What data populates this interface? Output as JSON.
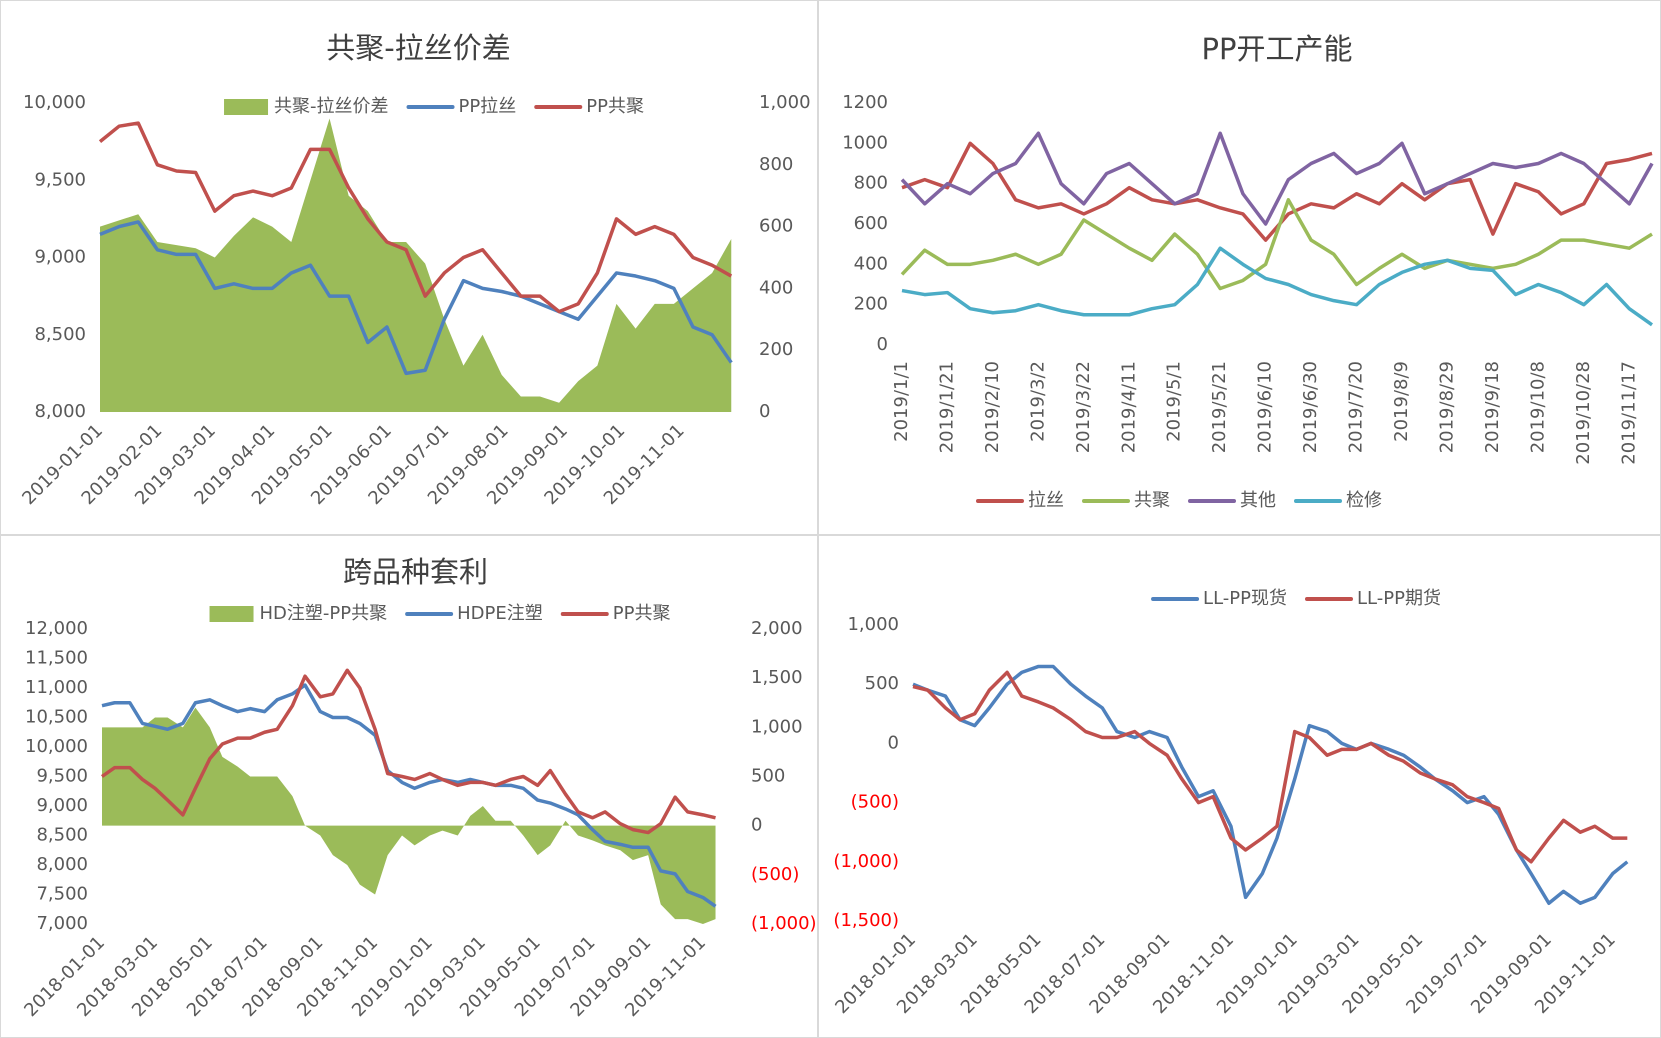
{
  "chart_data": [
    {
      "type": "combo",
      "title": "共聚-拉丝价差",
      "legend": "top",
      "x": [
        "2019-01-01",
        "2019-01-11",
        "2019-01-21",
        "2019-01-31",
        "2019-02-10",
        "2019-02-20",
        "2019-03-02",
        "2019-03-12",
        "2019-03-22",
        "2019-04-01",
        "2019-04-11",
        "2019-04-21",
        "2019-05-01",
        "2019-05-11",
        "2019-05-21",
        "2019-05-31",
        "2019-06-10",
        "2019-06-20",
        "2019-06-30",
        "2019-07-10",
        "2019-07-20",
        "2019-07-30",
        "2019-08-09",
        "2019-08-19",
        "2019-08-29",
        "2019-09-08",
        "2019-09-18",
        "2019-09-28",
        "2019-10-08",
        "2019-10-18",
        "2019-10-28",
        "2019-11-07",
        "2019-11-17",
        "2019-11-27"
      ],
      "xlim": [
        "2019-01-01",
        "2019-11-30"
      ],
      "xticks": [
        "2019-01-01",
        "2019-02-01",
        "2019-03-01",
        "2019-04-01",
        "2019-05-01",
        "2019-06-01",
        "2019-07-01",
        "2019-08-01",
        "2019-09-01",
        "2019-10-01",
        "2019-11-01"
      ],
      "ylim": [
        8000,
        10000
      ],
      "yticks": [
        {
          "value": 8000,
          "label": "8,000"
        },
        {
          "value": 8500,
          "label": "8,500"
        },
        {
          "value": 9000,
          "label": "9,000"
        },
        {
          "value": 9500,
          "label": "9,500"
        },
        {
          "value": 10000,
          "label": "10,000"
        }
      ],
      "y2lim": [
        0,
        1000
      ],
      "y2ticks": [
        0,
        200,
        400,
        600,
        800,
        {
          "value": 1000,
          "label": "1,000"
        }
      ],
      "series": [
        {
          "name": "共聚-拉丝价差",
          "kind": "area",
          "axis": "y2",
          "color": "#9bbb59",
          "values": [
            600,
            620,
            640,
            550,
            540,
            530,
            500,
            570,
            630,
            600,
            550,
            750,
            950,
            700,
            650,
            550,
            550,
            480,
            300,
            150,
            250,
            120,
            50,
            50,
            30,
            100,
            150,
            350,
            270,
            350,
            350,
            400,
            450,
            560
          ]
        },
        {
          "name": "PP拉丝",
          "kind": "line",
          "color": "#4f81bd",
          "values": [
            9150,
            9200,
            9230,
            9050,
            9020,
            9020,
            8800,
            8830,
            8800,
            8800,
            8900,
            8950,
            8750,
            8750,
            8450,
            8550,
            8250,
            8270,
            8600,
            8850,
            8800,
            8780,
            8750,
            8700,
            8650,
            8600,
            8750,
            8900,
            8880,
            8850,
            8800,
            8550,
            8500,
            8320
          ]
        },
        {
          "name": "PP共聚",
          "kind": "line",
          "color": "#c0504d",
          "values": [
            9750,
            9850,
            9870,
            9600,
            9560,
            9550,
            9300,
            9400,
            9430,
            9400,
            9450,
            9700,
            9700,
            9450,
            9250,
            9100,
            9050,
            8750,
            8900,
            9000,
            9050,
            8900,
            8750,
            8750,
            8650,
            8700,
            8900,
            9250,
            9150,
            9200,
            9150,
            9000,
            8950,
            8880
          ]
        }
      ]
    },
    {
      "type": "line",
      "title": "PP开工产能",
      "legend": "bottom",
      "x": [
        "2019/1/1",
        "2019/1/11",
        "2019/1/21",
        "2019/1/31",
        "2019/2/10",
        "2019/2/20",
        "2019/3/2",
        "2019/3/12",
        "2019/3/22",
        "2019/4/1",
        "2019/4/11",
        "2019/4/21",
        "2019/5/1",
        "2019/5/11",
        "2019/5/21",
        "2019/5/31",
        "2019/6/10",
        "2019/6/20",
        "2019/6/30",
        "2019/7/10",
        "2019/7/20",
        "2019/7/30",
        "2019/8/9",
        "2019/8/19",
        "2019/8/29",
        "2019/9/8",
        "2019/9/18",
        "2019/9/28",
        "2019/10/8",
        "2019/10/18",
        "2019/10/28",
        "2019/11/7",
        "2019/11/17",
        "2019/11/27"
      ],
      "xlim": [
        "2019/1/1",
        "2019/11/27"
      ],
      "xticks": [
        "2019/1/1",
        "2019/1/21",
        "2019/2/10",
        "2019/3/2",
        "2019/3/22",
        "2019/4/11",
        "2019/5/1",
        "2019/5/21",
        "2019/6/10",
        "2019/6/30",
        "2019/7/20",
        "2019/8/9",
        "2019/8/29",
        "2019/9/18",
        "2019/10/8",
        "2019/10/28",
        "2019/11/17"
      ],
      "ylim": [
        0,
        1200
      ],
      "yticks": [
        0,
        200,
        400,
        600,
        800,
        1000,
        1200
      ],
      "series": [
        {
          "name": "拉丝",
          "kind": "line",
          "color": "#c0504d",
          "values": [
            780,
            820,
            780,
            1000,
            900,
            720,
            680,
            700,
            650,
            700,
            780,
            720,
            700,
            720,
            680,
            650,
            520,
            650,
            700,
            680,
            750,
            700,
            800,
            720,
            800,
            820,
            550,
            800,
            760,
            650,
            700,
            900,
            920,
            950
          ]
        },
        {
          "name": "共聚",
          "kind": "line",
          "color": "#9bbb59",
          "values": [
            350,
            470,
            400,
            400,
            420,
            450,
            400,
            450,
            620,
            550,
            480,
            420,
            550,
            450,
            280,
            320,
            400,
            720,
            520,
            450,
            300,
            380,
            450,
            380,
            420,
            400,
            380,
            400,
            450,
            520,
            520,
            500,
            480,
            550
          ]
        },
        {
          "name": "其他",
          "kind": "line",
          "color": "#8064a2",
          "values": [
            820,
            700,
            800,
            750,
            850,
            900,
            1050,
            800,
            700,
            850,
            900,
            800,
            700,
            750,
            1050,
            750,
            600,
            820,
            900,
            950,
            850,
            900,
            1000,
            750,
            800,
            850,
            900,
            880,
            900,
            950,
            900,
            800,
            700,
            900
          ]
        },
        {
          "name": "检修",
          "kind": "line",
          "color": "#4bacc6",
          "values": [
            270,
            250,
            260,
            180,
            160,
            170,
            200,
            170,
            150,
            150,
            150,
            180,
            200,
            300,
            480,
            400,
            330,
            300,
            250,
            220,
            200,
            300,
            360,
            400,
            420,
            380,
            370,
            250,
            300,
            260,
            200,
            300,
            180,
            100
          ]
        }
      ]
    },
    {
      "type": "combo",
      "title": "跨品种套利",
      "legend": "top",
      "negative_tick_color": "#ff0000",
      "x": [
        "2018-01-01",
        "2018-01-15",
        "2018-02-01",
        "2018-02-15",
        "2018-03-01",
        "2018-03-15",
        "2018-04-01",
        "2018-04-15",
        "2018-05-01",
        "2018-05-15",
        "2018-06-01",
        "2018-06-15",
        "2018-07-01",
        "2018-07-15",
        "2018-08-01",
        "2018-08-15",
        "2018-09-01",
        "2018-09-15",
        "2018-10-01",
        "2018-10-15",
        "2018-11-01",
        "2018-11-15",
        "2018-12-01",
        "2018-12-15",
        "2019-01-01",
        "2019-01-15",
        "2019-02-01",
        "2019-02-15",
        "2019-03-01",
        "2019-03-15",
        "2019-04-01",
        "2019-04-15",
        "2019-05-01",
        "2019-05-15",
        "2019-06-01",
        "2019-06-15",
        "2019-07-01",
        "2019-07-15",
        "2019-08-01",
        "2019-08-15",
        "2019-09-01",
        "2019-09-15",
        "2019-10-01",
        "2019-10-15",
        "2019-11-01",
        "2019-11-15"
      ],
      "xlim": [
        "2018-01-01",
        "2019-11-30"
      ],
      "xticks": [
        "2018-01-01",
        "2018-03-01",
        "2018-05-01",
        "2018-07-01",
        "2018-09-01",
        "2018-11-01",
        "2019-01-01",
        "2019-03-01",
        "2019-05-01",
        "2019-07-01",
        "2019-09-01",
        "2019-11-01"
      ],
      "ylim": [
        7000,
        12000
      ],
      "yticks": [
        {
          "value": 7000,
          "label": "7,000"
        },
        {
          "value": 7500,
          "label": "7,500"
        },
        {
          "value": 8000,
          "label": "8,000"
        },
        {
          "value": 8500,
          "label": "8,500"
        },
        {
          "value": 9000,
          "label": "9,000"
        },
        {
          "value": 9500,
          "label": "9,500"
        },
        {
          "value": 10000,
          "label": "10,000"
        },
        {
          "value": 10500,
          "label": "10,500"
        },
        {
          "value": 11000,
          "label": "11,000"
        },
        {
          "value": 11500,
          "label": "11,500"
        },
        {
          "value": 12000,
          "label": "12,000"
        }
      ],
      "y2lim": [
        -1000,
        2000
      ],
      "y2ticks": [
        {
          "value": -1000,
          "label": "(1,000)"
        },
        {
          "value": -500,
          "label": "(500)"
        },
        0,
        500,
        {
          "value": 1000,
          "label": "1,000"
        },
        {
          "value": 1500,
          "label": "1,500"
        },
        {
          "value": 2000,
          "label": "2,000"
        }
      ],
      "series": [
        {
          "name": "HD注塑-PP共聚",
          "kind": "area",
          "axis": "y2",
          "color": "#9bbb59",
          "values": [
            1000,
            1000,
            1000,
            1000,
            1100,
            1100,
            1000,
            1200,
            1000,
            700,
            600,
            500,
            500,
            500,
            300,
            0,
            -100,
            -300,
            -400,
            -600,
            -700,
            -300,
            -100,
            -200,
            -100,
            -50,
            -100,
            100,
            200,
            50,
            50,
            -100,
            -300,
            -200,
            50,
            -100,
            -150,
            -200,
            -250,
            -350,
            -300,
            -800,
            -950,
            -950,
            -1000,
            -950
          ]
        },
        {
          "name": "HDPE注塑",
          "kind": "line",
          "color": "#4f81bd",
          "values": [
            10700,
            10750,
            10750,
            10400,
            10350,
            10300,
            10400,
            10750,
            10800,
            10700,
            10600,
            10650,
            10600,
            10800,
            10900,
            11050,
            10600,
            10500,
            10500,
            10400,
            10200,
            9600,
            9400,
            9300,
            9400,
            9450,
            9400,
            9450,
            9400,
            9350,
            9350,
            9300,
            9100,
            9050,
            8950,
            8850,
            8600,
            8400,
            8350,
            8300,
            8300,
            7900,
            7850,
            7550,
            7450,
            7300
          ]
        },
        {
          "name": "PP共聚",
          "kind": "line",
          "color": "#c0504d",
          "values": [
            9500,
            9650,
            9650,
            9450,
            9300,
            9100,
            8850,
            9300,
            9800,
            10050,
            10150,
            10150,
            10250,
            10300,
            10700,
            11200,
            10850,
            10900,
            11300,
            11000,
            10300,
            9550,
            9500,
            9450,
            9550,
            9450,
            9350,
            9400,
            9400,
            9350,
            9450,
            9500,
            9350,
            9600,
            9200,
            8900,
            8800,
            8900,
            8700,
            8600,
            8550,
            8700,
            9150,
            8900,
            8850,
            8800
          ]
        }
      ]
    },
    {
      "type": "line",
      "legend": "top",
      "negative_tick_color": "#ff0000",
      "x": [
        "2018-01-01",
        "2018-01-15",
        "2018-02-01",
        "2018-02-15",
        "2018-03-01",
        "2018-03-15",
        "2018-04-01",
        "2018-04-15",
        "2018-05-01",
        "2018-05-15",
        "2018-06-01",
        "2018-06-15",
        "2018-07-01",
        "2018-07-15",
        "2018-08-01",
        "2018-08-15",
        "2018-09-01",
        "2018-09-15",
        "2018-10-01",
        "2018-10-15",
        "2018-11-01",
        "2018-11-15",
        "2018-12-01",
        "2018-12-15",
        "2019-01-01",
        "2019-01-15",
        "2019-02-01",
        "2019-02-15",
        "2019-03-01",
        "2019-03-15",
        "2019-04-01",
        "2019-04-15",
        "2019-05-01",
        "2019-05-15",
        "2019-06-01",
        "2019-06-15",
        "2019-07-01",
        "2019-07-15",
        "2019-08-01",
        "2019-08-15",
        "2019-09-01",
        "2019-09-15",
        "2019-10-01",
        "2019-10-15",
        "2019-11-01",
        "2019-11-15"
      ],
      "xlim": [
        "2018-01-01",
        "2019-11-30"
      ],
      "xticks": [
        "2018-01-01",
        "2018-03-01",
        "2018-05-01",
        "2018-07-01",
        "2018-09-01",
        "2018-11-01",
        "2019-01-01",
        "2019-03-01",
        "2019-05-01",
        "2019-07-01",
        "2019-09-01",
        "2019-11-01"
      ],
      "ylim": [
        -1500,
        1000
      ],
      "yticks": [
        {
          "value": -1500,
          "label": "(1,500)"
        },
        {
          "value": -1000,
          "label": "(1,000)"
        },
        {
          "value": -500,
          "label": "(500)"
        },
        0,
        500,
        {
          "value": 1000,
          "label": "1,000"
        }
      ],
      "series": [
        {
          "name": "LL-PP现货",
          "kind": "line",
          "color": "#4f81bd",
          "values": [
            500,
            450,
            400,
            200,
            150,
            300,
            500,
            600,
            650,
            650,
            500,
            400,
            300,
            100,
            50,
            100,
            50,
            -200,
            -450,
            -400,
            -700,
            -1300,
            -1100,
            -800,
            -300,
            150,
            100,
            0,
            -50,
            0,
            -50,
            -100,
            -200,
            -300,
            -400,
            -500,
            -450,
            -600,
            -900,
            -1100,
            -1350,
            -1250,
            -1350,
            -1300,
            -1100,
            -1000
          ]
        },
        {
          "name": "LL-PP期货",
          "kind": "line",
          "color": "#c0504d",
          "values": [
            480,
            450,
            300,
            200,
            250,
            450,
            600,
            400,
            350,
            300,
            200,
            100,
            50,
            50,
            100,
            0,
            -100,
            -300,
            -500,
            -450,
            -800,
            -900,
            -800,
            -700,
            100,
            50,
            -100,
            -50,
            -50,
            0,
            -100,
            -150,
            -250,
            -300,
            -350,
            -450,
            -500,
            -550,
            -900,
            -1000,
            -800,
            -650,
            -750,
            -700,
            -800,
            -800
          ]
        }
      ]
    }
  ]
}
